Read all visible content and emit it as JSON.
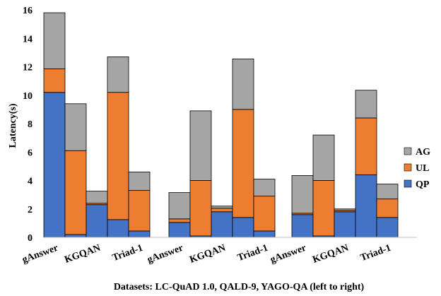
{
  "chart_data": {
    "type": "bar",
    "stacked": true,
    "ylabel": "Latency(s)",
    "xlabel": "Datasets: LC-QuAD 1.0, QALD-9, YAGO-QA (left to right)",
    "ylim": [
      0,
      16
    ],
    "yticks": [
      0,
      2,
      4,
      6,
      8,
      10,
      12,
      14,
      16
    ],
    "grid": false,
    "legend_position": "right",
    "groups": [
      "LC-QuAD 1.0",
      "QALD-9",
      "YAGO-QA"
    ],
    "bars": [
      {
        "group": 0,
        "label": "gAnswer"
      },
      {
        "group": 0,
        "label": ""
      },
      {
        "group": 0,
        "label": "KGQAN"
      },
      {
        "group": 0,
        "label": ""
      },
      {
        "group": 0,
        "label": "Triad-1"
      },
      {
        "group": 1,
        "label": "gAnswer"
      },
      {
        "group": 1,
        "label": ""
      },
      {
        "group": 1,
        "label": "KGQAN"
      },
      {
        "group": 1,
        "label": ""
      },
      {
        "group": 1,
        "label": "Triad-1"
      },
      {
        "group": 2,
        "label": "gAnswer"
      },
      {
        "group": 2,
        "label": ""
      },
      {
        "group": 2,
        "label": "KGQAN"
      },
      {
        "group": 2,
        "label": ""
      },
      {
        "group": 2,
        "label": "Triad-1"
      }
    ],
    "series": [
      {
        "name": "QP",
        "color": "#4472C4",
        "values": [
          10.2,
          0.2,
          2.3,
          1.25,
          0.45,
          1.05,
          0.1,
          1.8,
          1.4,
          0.45,
          1.6,
          0.1,
          1.8,
          4.4,
          1.4
        ]
      },
      {
        "name": "UL",
        "color": "#ED7D31",
        "values": [
          1.65,
          5.9,
          0.1,
          8.95,
          2.85,
          0.25,
          3.9,
          0.25,
          7.6,
          2.45,
          0.1,
          3.9,
          0.1,
          4.0,
          1.3
        ]
      },
      {
        "name": "AG",
        "color": "#A5A5A5",
        "values": [
          3.95,
          3.3,
          0.85,
          2.5,
          1.3,
          1.85,
          4.9,
          0.15,
          3.55,
          1.2,
          2.65,
          3.2,
          0.1,
          1.95,
          1.05
        ]
      }
    ],
    "legend_order": [
      "AG",
      "UL",
      "QP"
    ]
  }
}
